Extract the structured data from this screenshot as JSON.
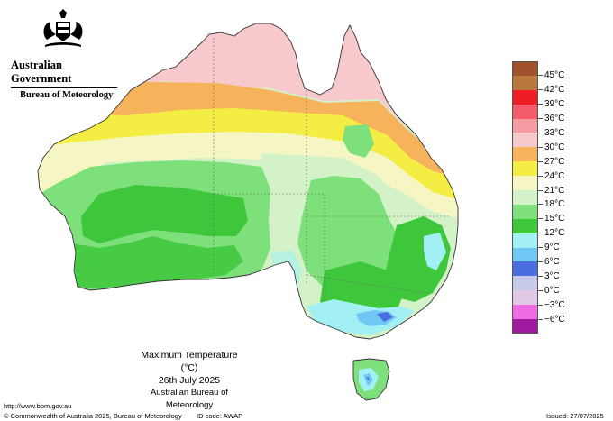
{
  "header": {
    "agency": "Australian Government",
    "bureau": "Bureau of Meteorology"
  },
  "legend": [
    {
      "label": "45°C",
      "color": "#a0522d"
    },
    {
      "label": "42°C",
      "color": "#b8773c"
    },
    {
      "label": "39°C",
      "color": "#ee1c24"
    },
    {
      "label": "36°C",
      "color": "#f35b6a"
    },
    {
      "label": "33°C",
      "color": "#f49ca2"
    },
    {
      "label": "30°C",
      "color": "#f8c9cc"
    },
    {
      "label": "27°C",
      "color": "#f7b25c"
    },
    {
      "label": "24°C",
      "color": "#f4ee44"
    },
    {
      "label": "21°C",
      "color": "#f6f6c4"
    },
    {
      "label": "18°C",
      "color": "#d4f2c8"
    },
    {
      "label": "15°C",
      "color": "#7ee07b"
    },
    {
      "label": "12°C",
      "color": "#3ec73b"
    },
    {
      "label": "9°C",
      "color": "#a3f0f4"
    },
    {
      "label": "6°C",
      "color": "#6fc8f3"
    },
    {
      "label": "3°C",
      "color": "#4a6ee0"
    },
    {
      "label": "0°C",
      "color": "#c7c9e9"
    },
    {
      "label": "−3°C",
      "color": "#e0c7e6"
    },
    {
      "label": "−6°C",
      "color": "#f06be3"
    },
    {
      "label": "",
      "color": "#a0199e"
    }
  ],
  "map": {
    "title": "Maximum Temperature (°C)",
    "date": "26th July 2025",
    "source": "Australian Bureau of Meteorology"
  },
  "footer": {
    "url": "http://www.bom.gov.au",
    "copyright": "© Commonwealth of Australia 2025, Bureau of Meteorology",
    "id_code": "ID code: AWAP",
    "issued": "Issued: 27/07/2025"
  }
}
